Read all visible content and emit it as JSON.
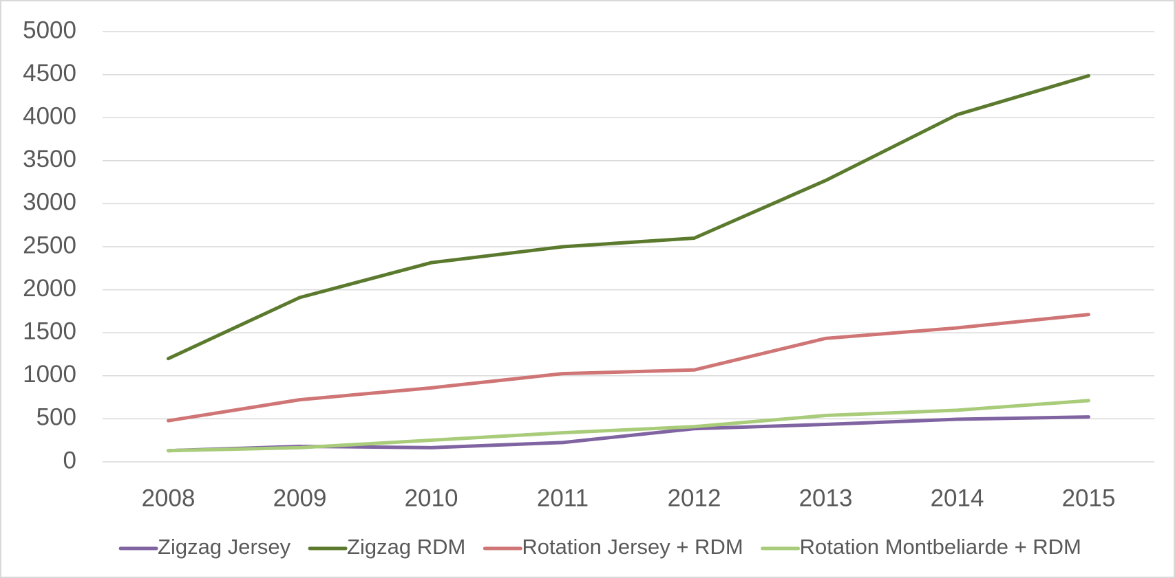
{
  "chart_data": {
    "type": "line",
    "categories": [
      "2008",
      "2009",
      "2010",
      "2011",
      "2012",
      "2013",
      "2014",
      "2015"
    ],
    "series": [
      {
        "name": "Zigzag Jersey",
        "color": "#8064a2",
        "values": [
          130,
          180,
          165,
          225,
          385,
          435,
          495,
          522
        ]
      },
      {
        "name": "Zigzag RDM",
        "color": "#5b7a2e",
        "values": [
          1200,
          1910,
          2315,
          2500,
          2600,
          3270,
          4035,
          4487
        ]
      },
      {
        "name": "Rotation Jersey + RDM",
        "color": "#d07575",
        "values": [
          478,
          722,
          860,
          1025,
          1068,
          1435,
          1557,
          1712
        ]
      },
      {
        "name": "Rotation Montbeliarde + RDM",
        "color": "#a9cc7a",
        "values": [
          130,
          165,
          252,
          338,
          409,
          539,
          600,
          712
        ]
      }
    ],
    "ylim": [
      0,
      5000
    ],
    "yticks": [
      0,
      500,
      1000,
      1500,
      2000,
      2500,
      3000,
      3500,
      4000,
      4500,
      5000
    ],
    "grid": true,
    "legend": "bottom"
  }
}
